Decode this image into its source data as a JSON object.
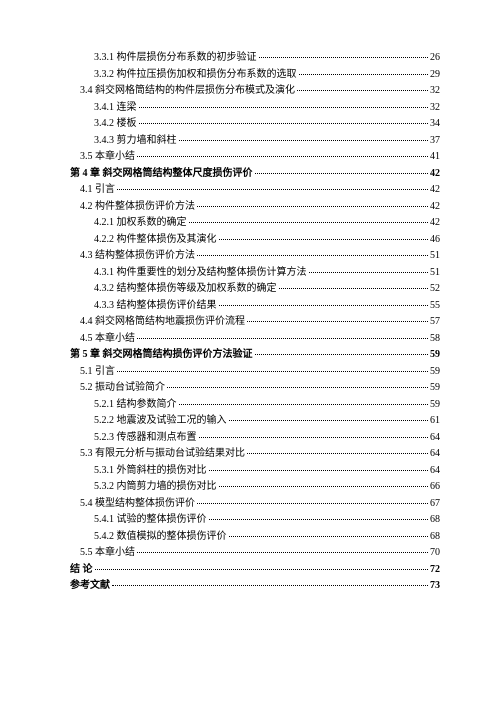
{
  "toc": [
    {
      "indent": 2,
      "label": "3.3.1 构件层损伤分布系数的初步验证",
      "page": "26"
    },
    {
      "indent": 2,
      "label": "3.3.2 构件拉压损伤加权和损伤分布系数的选取",
      "page": "29"
    },
    {
      "indent": 1,
      "label": "3.4 斜交网格筒结构的构件层损伤分布模式及演化",
      "page": "32"
    },
    {
      "indent": 2,
      "label": "3.4.1 连梁",
      "page": "32"
    },
    {
      "indent": 2,
      "label": "3.4.2 楼板",
      "page": "34"
    },
    {
      "indent": 2,
      "label": "3.4.3 剪力墙和斜柱",
      "page": "37"
    },
    {
      "indent": 1,
      "label": "3.5 本章小结",
      "page": "41"
    },
    {
      "indent": 0,
      "label": "第 4 章 斜交网格筒结构整体尺度损伤评价",
      "page": "42",
      "chapter": true
    },
    {
      "indent": 1,
      "label": "4.1 引言",
      "page": "42"
    },
    {
      "indent": 1,
      "label": "4.2 构件整体损伤评价方法",
      "page": "42"
    },
    {
      "indent": 2,
      "label": "4.2.1 加权系数的确定",
      "page": "42"
    },
    {
      "indent": 2,
      "label": "4.2.2 构件整体损伤及其演化",
      "page": "46"
    },
    {
      "indent": 1,
      "label": "4.3 结构整体损伤评价方法",
      "page": "51"
    },
    {
      "indent": 2,
      "label": "4.3.1 构件重要性的划分及结构整体损伤计算方法",
      "page": "51"
    },
    {
      "indent": 2,
      "label": "4.3.2 结构整体损伤等级及加权系数的确定",
      "page": "52"
    },
    {
      "indent": 2,
      "label": "4.3.3 结构整体损伤评价结果",
      "page": "55"
    },
    {
      "indent": 1,
      "label": "4.4 斜交网格筒结构地震损伤评价流程",
      "page": "57"
    },
    {
      "indent": 1,
      "label": "4.5 本章小结",
      "page": "58"
    },
    {
      "indent": 0,
      "label": "第 5 章 斜交网格筒结构损伤评价方法验证",
      "page": "59",
      "chapter": true
    },
    {
      "indent": 1,
      "label": "5.1 引言",
      "page": "59"
    },
    {
      "indent": 1,
      "label": "5.2 振动台试验简介",
      "page": "59"
    },
    {
      "indent": 2,
      "label": "5.2.1 结构参数简介",
      "page": "59"
    },
    {
      "indent": 2,
      "label": "5.2.2 地震波及试验工况的输入",
      "page": "61"
    },
    {
      "indent": 2,
      "label": "5.2.3 传感器和测点布置",
      "page": "64"
    },
    {
      "indent": 1,
      "label": "5.3 有限元分析与振动台试验结果对比",
      "page": "64"
    },
    {
      "indent": 2,
      "label": "5.3.1 外筒斜柱的损伤对比",
      "page": "64"
    },
    {
      "indent": 2,
      "label": "5.3.2 内筒剪力墙的损伤对比",
      "page": "66"
    },
    {
      "indent": 1,
      "label": "5.4 模型结构整体损伤评价",
      "page": "67"
    },
    {
      "indent": 2,
      "label": "5.4.1 试验的整体损伤评价",
      "page": "68"
    },
    {
      "indent": 2,
      "label": "5.4.2 数值模拟的整体损伤评价",
      "page": "68"
    },
    {
      "indent": 1,
      "label": "5.5 本章小结",
      "page": "70"
    },
    {
      "indent": 0,
      "label": "结    论",
      "page": "72",
      "chapter": true
    },
    {
      "indent": 0,
      "label": "参考文献",
      "page": "73",
      "chapter": true
    }
  ]
}
